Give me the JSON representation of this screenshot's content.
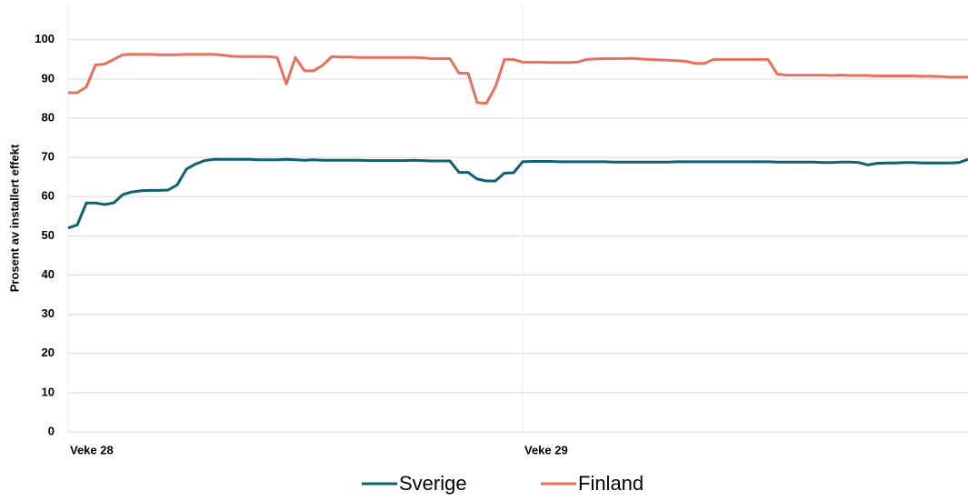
{
  "chart_data": {
    "type": "line",
    "ylabel": "Prosent av installert effekt",
    "categories": [
      "Veke 28",
      null,
      null,
      null,
      null,
      null,
      null,
      null,
      null,
      null,
      null,
      null,
      null,
      null,
      null,
      null,
      null,
      null,
      null,
      null,
      null,
      null,
      null,
      null,
      null,
      null,
      null,
      null,
      null,
      null,
      null,
      null,
      null,
      null,
      null,
      null,
      null,
      null,
      null,
      null,
      null,
      null,
      null,
      null,
      null,
      null,
      null,
      null,
      null,
      null,
      "Veke 29",
      null,
      null,
      null,
      null,
      null,
      null,
      null,
      null,
      null,
      null,
      null,
      null,
      null,
      null,
      null,
      null,
      null,
      null,
      null,
      null,
      null,
      null,
      null,
      null,
      null,
      null,
      null,
      null,
      null,
      null,
      null,
      null,
      null,
      null,
      null,
      null,
      null,
      null,
      null,
      null,
      null,
      null,
      null,
      null,
      null,
      null,
      null,
      null,
      null
    ],
    "series": [
      {
        "name": "Sverige",
        "color": "#0f6070",
        "values": [
          52,
          52.8,
          58.4,
          58.4,
          58,
          58.4,
          60.5,
          61.2,
          61.5,
          61.6,
          61.6,
          61.7,
          63,
          67,
          68.3,
          69.2,
          69.5,
          69.5,
          69.5,
          69.5,
          69.5,
          69.4,
          69.4,
          69.4,
          69.5,
          69.4,
          69.3,
          69.4,
          69.3,
          69.3,
          69.3,
          69.3,
          69.3,
          69.2,
          69.2,
          69.2,
          69.2,
          69.2,
          69.3,
          69.2,
          69.1,
          69.1,
          69.1,
          66.2,
          66.2,
          64.5,
          64,
          64,
          66,
          66.1,
          68.9,
          69,
          69,
          69,
          68.9,
          68.9,
          68.9,
          68.9,
          68.9,
          68.9,
          68.8,
          68.8,
          68.8,
          68.8,
          68.8,
          68.8,
          68.8,
          68.9,
          68.9,
          68.9,
          68.9,
          68.9,
          68.9,
          68.9,
          68.9,
          68.9,
          68.9,
          68.9,
          68.8,
          68.8,
          68.8,
          68.8,
          68.8,
          68.7,
          68.7,
          68.8,
          68.8,
          68.7,
          68.1,
          68.5,
          68.6,
          68.6,
          68.7,
          68.7,
          68.6,
          68.6,
          68.6,
          68.6,
          68.7,
          69.5
        ]
      },
      {
        "name": "Finland",
        "color": "#e8705c",
        "values": [
          86.5,
          86.5,
          88,
          93.6,
          93.8,
          95,
          96.2,
          96.3,
          96.3,
          96.3,
          96.2,
          96.2,
          96.2,
          96.3,
          96.3,
          96.3,
          96.3,
          96.1,
          95.8,
          95.7,
          95.7,
          95.7,
          95.7,
          95.5,
          88.7,
          95.5,
          92.1,
          92.1,
          93.5,
          95.7,
          95.6,
          95.6,
          95.5,
          95.5,
          95.5,
          95.5,
          95.5,
          95.5,
          95.5,
          95.4,
          95.2,
          95.2,
          95.2,
          91.5,
          91.5,
          84,
          83.8,
          88,
          95,
          95,
          94.3,
          94.3,
          94.3,
          94.2,
          94.2,
          94.2,
          94.3,
          95,
          95.1,
          95.2,
          95.2,
          95.2,
          95.3,
          95.1,
          95,
          94.9,
          94.8,
          94.7,
          94.5,
          94,
          94,
          95,
          95,
          95,
          95,
          95,
          95,
          95,
          91.3,
          91,
          91,
          91,
          91,
          91,
          90.9,
          91,
          90.9,
          90.9,
          90.9,
          90.8,
          90.8,
          90.8,
          90.8,
          90.8,
          90.7,
          90.7,
          90.6,
          90.5,
          90.5,
          90.5
        ]
      }
    ],
    "ylim": [
      0,
      109
    ],
    "yticks": [
      0,
      10,
      20,
      30,
      40,
      50,
      60,
      70,
      80,
      90,
      100
    ],
    "grid": true,
    "legend": "bottom"
  }
}
